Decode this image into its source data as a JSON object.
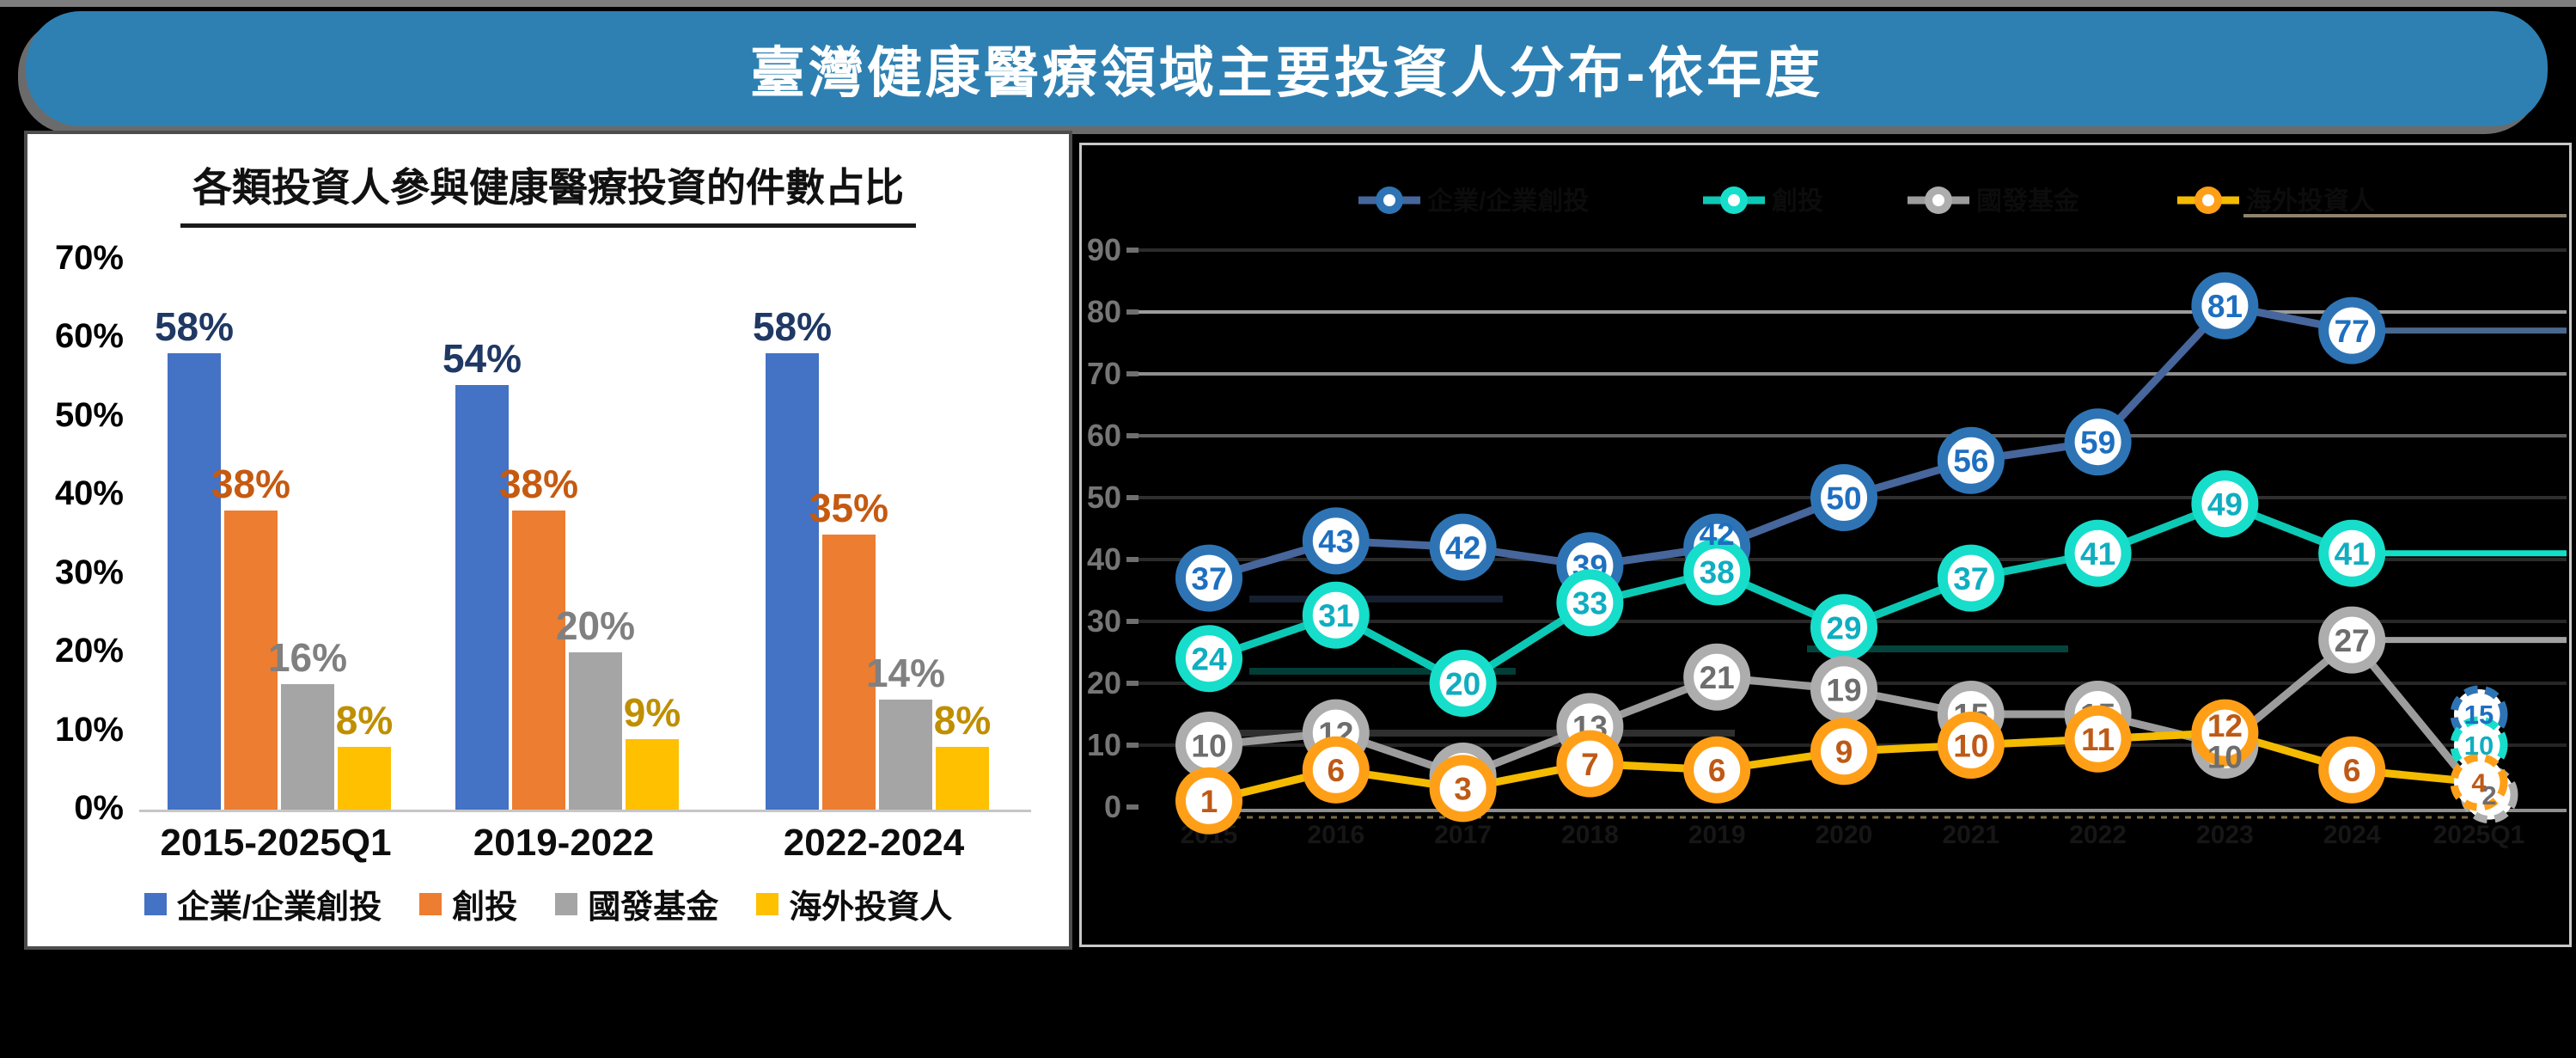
{
  "banner": {
    "title": "臺灣健康醫療領域主要投資人分布-依年度",
    "bg": "#2E80B2",
    "text_color": "#FFFFFF"
  },
  "chart_data": [
    {
      "type": "bar",
      "title": "各類投資人參與健康醫療投資的件數占比",
      "categories": [
        "2015-2025Q1",
        "2019-2022",
        "2022-2024"
      ],
      "series": [
        {
          "key": "corporate-cvc",
          "name": "企業/企業創投",
          "color": "#4472C4",
          "label_color": "#1F3864",
          "values": [
            58,
            54,
            58
          ]
        },
        {
          "key": "vc",
          "name": "創投",
          "color": "#ED7D31",
          "label_color": "#C55A11",
          "values": [
            38,
            38,
            35
          ]
        },
        {
          "key": "national-development-fund",
          "name": "國發基金",
          "color": "#A5A5A5",
          "label_color": "#808080",
          "values": [
            16,
            20,
            14
          ]
        },
        {
          "key": "overseas-investors",
          "name": "海外投資人",
          "color": "#FFC000",
          "label_color": "#BF8F00",
          "values": [
            8,
            9,
            8
          ]
        }
      ],
      "unit": "%",
      "ylim": [
        0,
        70
      ],
      "ytick_step": 10,
      "grid": false,
      "legend_position": "bottom"
    },
    {
      "type": "line",
      "categories": [
        "2015",
        "2016",
        "2017",
        "2018",
        "2019",
        "2020",
        "2021",
        "2022",
        "2023",
        "2024",
        "2025Q1"
      ],
      "series": [
        {
          "key": "corporate-cvc",
          "name": "企業/企業創投",
          "ring": "#2E74B5",
          "number_color": "#1E6FC0",
          "line": "#46669C",
          "values": [
            37,
            43,
            42,
            39,
            42,
            50,
            56,
            59,
            81,
            77,
            15
          ]
        },
        {
          "key": "vc",
          "name": "創投",
          "ring": "#16DECB",
          "number_color": "#0FAEC0",
          "line": "#0CC9B6",
          "values": [
            24,
            31,
            20,
            33,
            38,
            29,
            37,
            41,
            49,
            41,
            10
          ]
        },
        {
          "key": "national-development-fund",
          "name": "國發基金",
          "ring": "#ADADAD",
          "number_color": "#6E6E6E",
          "line": "#9C9C9C",
          "values": [
            10,
            12,
            5,
            13,
            21,
            19,
            15,
            15,
            10,
            27,
            2
          ]
        },
        {
          "key": "overseas-investors",
          "name": "海外投資人",
          "ring": "#FF9F17",
          "number_color": "#BE5A16",
          "line": "#F4BB00",
          "values": [
            1,
            6,
            3,
            7,
            6,
            9,
            10,
            11,
            12,
            6,
            4
          ]
        }
      ],
      "ylim": [
        0,
        90
      ],
      "ytick_step": 10,
      "grid": true,
      "legend_position": "top",
      "last_point_style": "dashed"
    }
  ]
}
